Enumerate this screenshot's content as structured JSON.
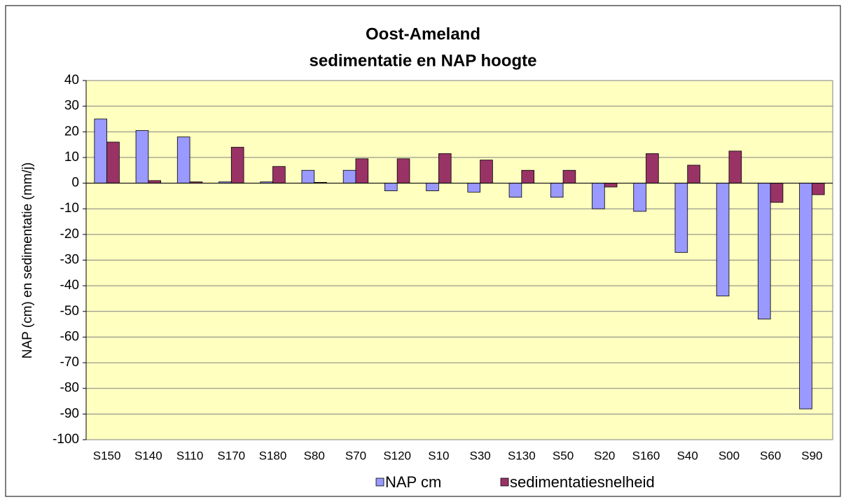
{
  "chart_data": {
    "type": "bar",
    "title": [
      "Oost-Ameland",
      "sedimentatie en NAP hoogte"
    ],
    "y_label": "NAP (cm) en sedimentatie (mm/j)",
    "categories": [
      "S150",
      "S140",
      "S110",
      "S170",
      "S180",
      "S80",
      "S70",
      "S120",
      "S10",
      "S30",
      "S130",
      "S50",
      "S20",
      "S160",
      "S40",
      "S00",
      "S60",
      "S90"
    ],
    "series": [
      {
        "name": "NAP cm",
        "color": "#9999ff",
        "values": [
          25,
          20.5,
          18,
          0.5,
          0.5,
          5,
          5,
          -3,
          -3,
          -3.5,
          -5.5,
          -5.5,
          -10,
          -11,
          -27,
          -44,
          -53,
          -88
        ]
      },
      {
        "name": "sedimentatiesnelheid",
        "color": "#993366",
        "values": [
          16,
          1,
          0.5,
          14,
          6.5,
          0.3,
          9.5,
          9.5,
          11.5,
          9,
          5,
          5,
          -1.5,
          11.5,
          7,
          12.5,
          -7.5,
          -4.5
        ]
      }
    ],
    "ylim": [
      -100,
      40
    ],
    "yticks": [
      -100,
      -90,
      -80,
      -70,
      -60,
      -50,
      -40,
      -30,
      -20,
      -10,
      0,
      10,
      20,
      30,
      40
    ],
    "grid": true
  }
}
